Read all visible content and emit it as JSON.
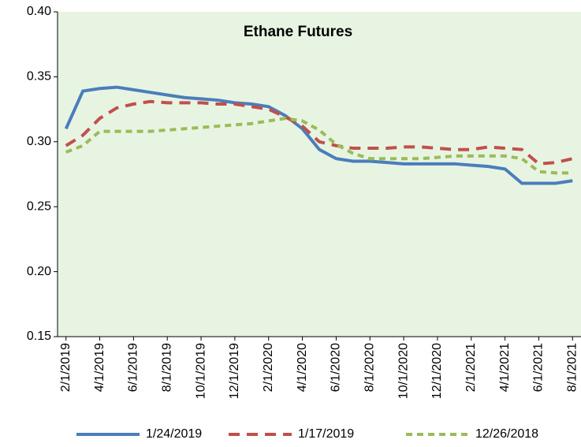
{
  "chart_data": {
    "type": "line",
    "title": "Ethane Futures",
    "categories": [
      "2/1/2019",
      null,
      "4/1/2019",
      null,
      "6/1/2019",
      null,
      "8/1/2019",
      null,
      "10/1/2019",
      null,
      "12/1/2019",
      null,
      "2/1/2020",
      null,
      "4/1/2020",
      null,
      "6/1/2020",
      null,
      "8/1/2020",
      null,
      "10/1/2020",
      null,
      "12/1/2020",
      null,
      "2/1/2021",
      null,
      "4/1/2021",
      null,
      "6/1/2021",
      null,
      "8/1/2021"
    ],
    "series": [
      {
        "name": "1/24/2019",
        "color": "#4a7ebb",
        "line_style": "solid",
        "values": [
          0.31,
          0.339,
          0.341,
          0.342,
          0.34,
          0.338,
          0.336,
          0.334,
          0.333,
          0.332,
          0.33,
          0.329,
          0.327,
          0.32,
          0.31,
          0.294,
          0.287,
          0.285,
          0.285,
          0.284,
          0.283,
          0.283,
          0.283,
          0.283,
          0.282,
          0.281,
          0.279,
          0.268,
          0.268,
          0.268,
          0.27
        ]
      },
      {
        "name": "1/17/2019",
        "color": "#c0504d",
        "line_style": "dashed",
        "values": [
          0.297,
          0.305,
          0.318,
          0.326,
          0.329,
          0.331,
          0.33,
          0.33,
          0.33,
          0.329,
          0.329,
          0.327,
          0.325,
          0.319,
          0.312,
          0.3,
          0.297,
          0.295,
          0.295,
          0.295,
          0.296,
          0.296,
          0.295,
          0.294,
          0.294,
          0.296,
          0.295,
          0.294,
          0.283,
          0.284,
          0.287
        ]
      },
      {
        "name": "12/26/2018",
        "color": "#9bbb59",
        "line_style": "dotted",
        "values": [
          0.292,
          0.297,
          0.308,
          0.308,
          0.308,
          0.308,
          0.309,
          0.31,
          0.311,
          0.312,
          0.313,
          0.314,
          0.316,
          0.318,
          0.316,
          0.309,
          0.298,
          0.291,
          0.287,
          0.287,
          0.287,
          0.287,
          0.288,
          0.289,
          0.289,
          0.289,
          0.289,
          0.287,
          0.277,
          0.276,
          0.276
        ]
      }
    ],
    "ylim": [
      0.15,
      0.4
    ],
    "yticks": [
      0.15,
      {
        "value": 0.2,
        "label": "0.20"
      },
      0.25,
      {
        "value": 0.3,
        "label": "0.30"
      },
      0.35,
      {
        "value": 0.4,
        "label": "0.40"
      }
    ],
    "legend": "bottom",
    "background": "#e8f4e2"
  }
}
